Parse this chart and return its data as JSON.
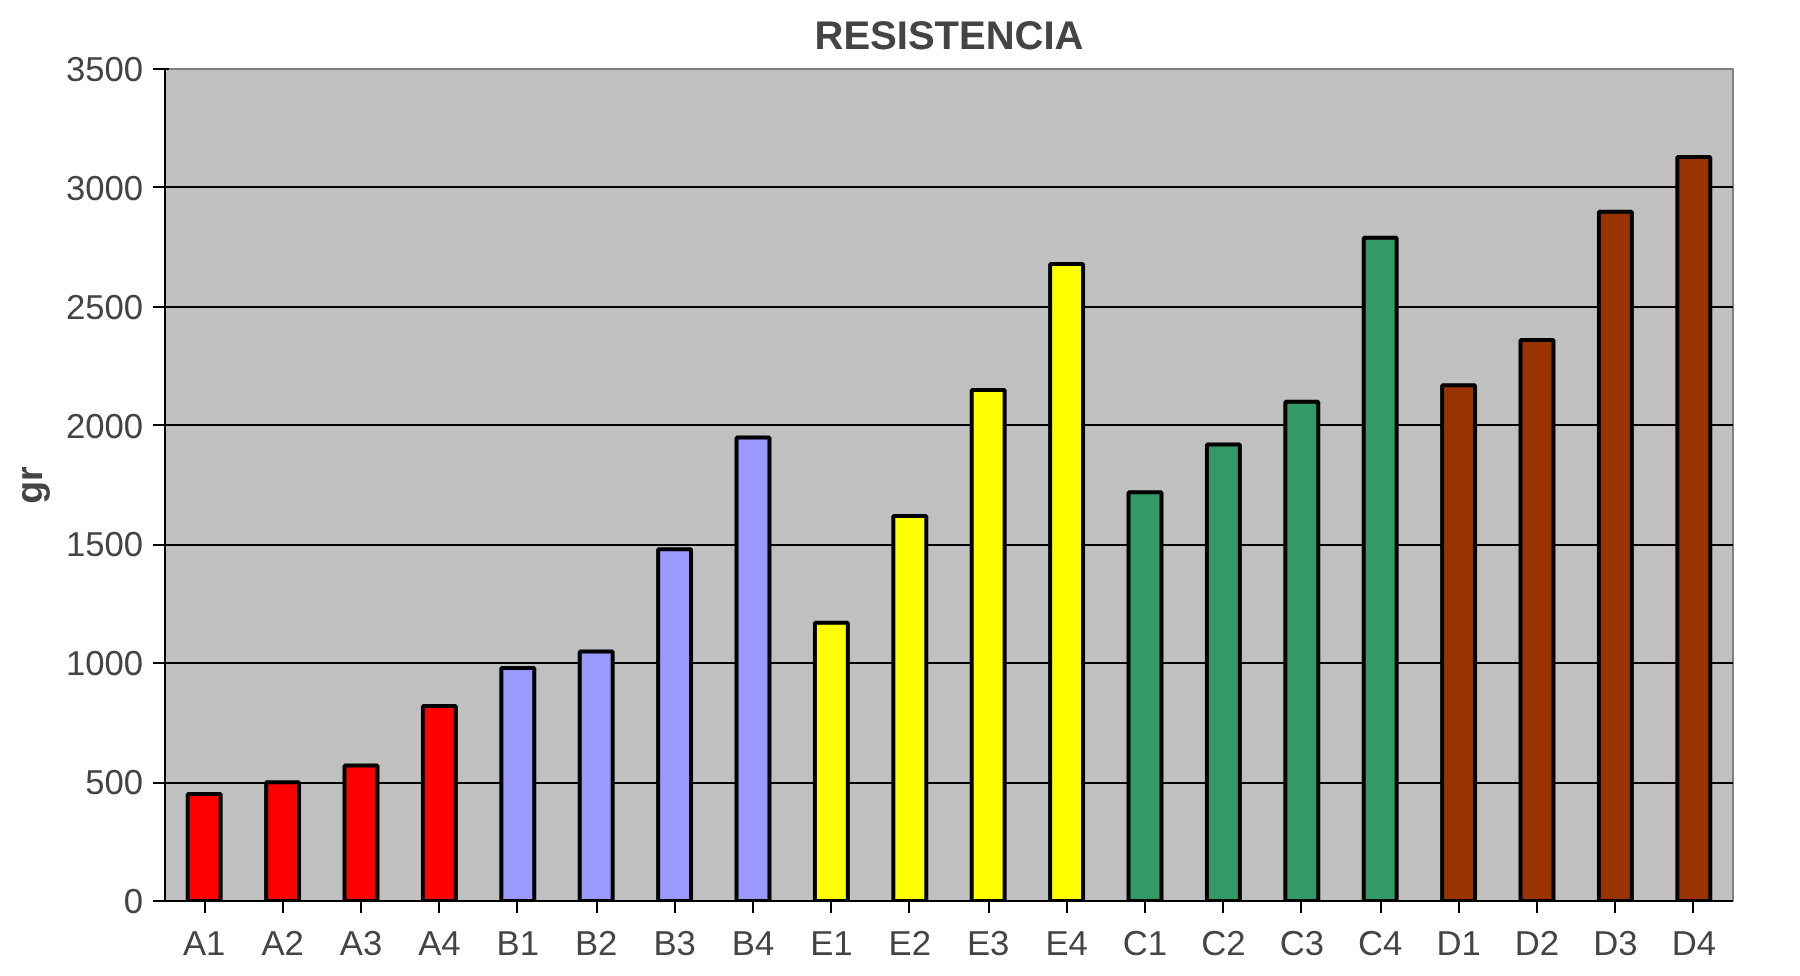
{
  "chart_data": {
    "type": "bar",
    "title": "RESISTENCIA",
    "ylabel": "gr",
    "categories": [
      "A1",
      "A2",
      "A3",
      "A4",
      "B1",
      "B2",
      "B3",
      "B4",
      "E1",
      "E2",
      "E3",
      "E4",
      "C1",
      "C2",
      "C3",
      "C4",
      "D1",
      "D2",
      "D3",
      "D4"
    ],
    "values": [
      450,
      500,
      570,
      820,
      980,
      1050,
      1480,
      1950,
      1170,
      1620,
      2150,
      2680,
      1720,
      1920,
      2100,
      2790,
      2170,
      2360,
      2900,
      3130
    ],
    "colors": [
      "#ff0000",
      "#ff0000",
      "#ff0000",
      "#ff0000",
      "#9999ff",
      "#9999ff",
      "#9999ff",
      "#9999ff",
      "#ffff00",
      "#ffff00",
      "#ffff00",
      "#ffff00",
      "#339966",
      "#339966",
      "#339966",
      "#339966",
      "#993300",
      "#993300",
      "#993300",
      "#993300"
    ],
    "ylim": [
      0,
      3500
    ],
    "yticks": [
      0,
      500,
      1000,
      1500,
      2000,
      2500,
      3000,
      3500
    ],
    "grid": "y"
  }
}
